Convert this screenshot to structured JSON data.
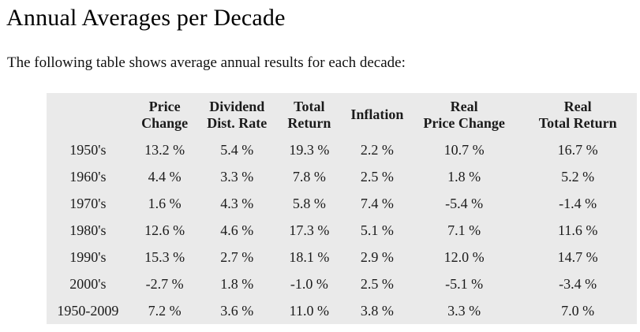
{
  "page": {
    "title": "Annual Averages per Decade",
    "subtitle": "The following table shows average annual results for each decade:"
  },
  "table": {
    "background_color": "#eaeaea",
    "text_color": "#1b1b1b",
    "columns": [
      {
        "line1": "",
        "line2": ""
      },
      {
        "line1": "Price",
        "line2": "Change"
      },
      {
        "line1": "Dividend",
        "line2": "Dist. Rate"
      },
      {
        "line1": "Total",
        "line2": "Return"
      },
      {
        "line1": "Inflation",
        "line2": ""
      },
      {
        "line1": "Real",
        "line2": "Price Change"
      },
      {
        "line1": "Real",
        "line2": "Total Return"
      }
    ],
    "rows": [
      {
        "label": "1950's",
        "values": [
          "13.2 %",
          "5.4 %",
          "19.3 %",
          "2.2 %",
          "10.7 %",
          "16.7 %"
        ]
      },
      {
        "label": "1960's",
        "values": [
          "4.4 %",
          "3.3 %",
          "7.8 %",
          "2.5 %",
          "1.8 %",
          "5.2 %"
        ]
      },
      {
        "label": "1970's",
        "values": [
          "1.6 %",
          "4.3 %",
          "5.8 %",
          "7.4 %",
          "-5.4 %",
          "-1.4 %"
        ]
      },
      {
        "label": "1980's",
        "values": [
          "12.6 %",
          "4.6 %",
          "17.3 %",
          "5.1 %",
          "7.1 %",
          "11.6 %"
        ]
      },
      {
        "label": "1990's",
        "values": [
          "15.3 %",
          "2.7 %",
          "18.1 %",
          "2.9 %",
          "12.0 %",
          "14.7 %"
        ]
      },
      {
        "label": "2000's",
        "values": [
          "-2.7 %",
          "1.8 %",
          "-1.0 %",
          "2.5 %",
          "-5.1 %",
          "-3.4 %"
        ]
      },
      {
        "label": "1950-2009",
        "values": [
          "7.2 %",
          "3.6 %",
          "11.0 %",
          "3.8 %",
          "3.3 %",
          "7.0 %"
        ]
      }
    ]
  },
  "chart_data": {
    "type": "table",
    "title": "Annual Averages per Decade",
    "unit": "%",
    "columns": [
      "",
      "Price Change",
      "Dividend Dist. Rate",
      "Total Return",
      "Inflation",
      "Real Price Change",
      "Real Total Return"
    ],
    "rows": [
      [
        "1950's",
        13.2,
        5.4,
        19.3,
        2.2,
        10.7,
        16.7
      ],
      [
        "1960's",
        4.4,
        3.3,
        7.8,
        2.5,
        1.8,
        5.2
      ],
      [
        "1970's",
        1.6,
        4.3,
        5.8,
        7.4,
        -5.4,
        -1.4
      ],
      [
        "1980's",
        12.6,
        4.6,
        17.3,
        5.1,
        7.1,
        11.6
      ],
      [
        "1990's",
        15.3,
        2.7,
        18.1,
        2.9,
        12.0,
        14.7
      ],
      [
        "2000's",
        -2.7,
        1.8,
        -1.0,
        2.5,
        -5.1,
        -3.4
      ],
      [
        "1950-2009",
        7.2,
        3.6,
        11.0,
        3.8,
        3.3,
        7.0
      ]
    ]
  }
}
